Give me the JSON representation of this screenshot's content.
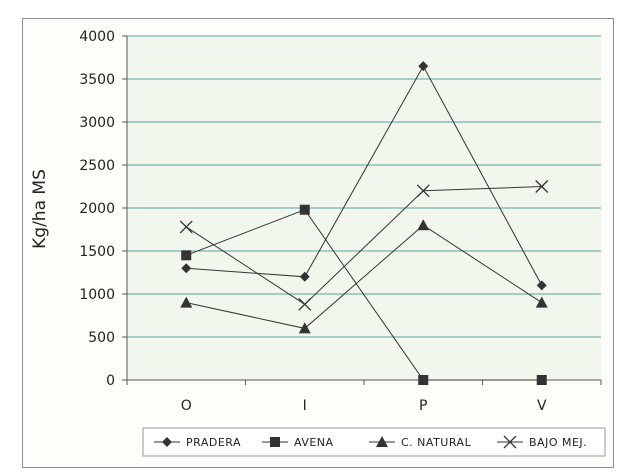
{
  "chart_data": {
    "type": "line",
    "title": "",
    "xlabel": "",
    "ylabel": "Kg/ha MS",
    "categories": [
      "O",
      "I",
      "P",
      "V"
    ],
    "ylim": [
      0,
      4000
    ],
    "yticks": [
      0,
      500,
      1000,
      1500,
      2000,
      2500,
      3000,
      3500,
      4000
    ],
    "grid": true,
    "legend_position": "bottom",
    "series": [
      {
        "name": "PRADERA",
        "marker": "diamond",
        "values": [
          1300,
          1200,
          3650,
          1100
        ]
      },
      {
        "name": "AVENA",
        "marker": "square",
        "values": [
          1450,
          1980,
          0,
          0
        ]
      },
      {
        "name": "C. NATURAL",
        "marker": "triangle",
        "values": [
          900,
          600,
          1800,
          900
        ]
      },
      {
        "name": "BAJO MEJ.",
        "marker": "x",
        "values": [
          1780,
          880,
          2200,
          2250
        ]
      }
    ],
    "colors": {
      "line": "#333333",
      "grid": "#5aa0a0",
      "plot_bg": "#f2f7ee"
    }
  }
}
